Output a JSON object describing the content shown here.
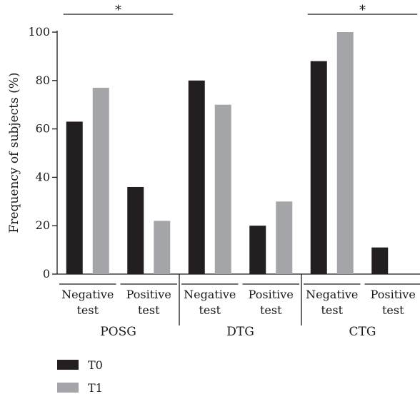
{
  "chart_data": {
    "type": "bar",
    "ylabel": "Frequency of subjects (%)",
    "ylim": [
      0,
      100
    ],
    "yticks": [
      0,
      20,
      40,
      60,
      80,
      100
    ],
    "groups": [
      {
        "name": "POSG",
        "categories": [
          "Negative\ntest",
          "Positive\ntest"
        ]
      },
      {
        "name": "DTG",
        "categories": [
          "Negative\ntest",
          "Positive\ntest"
        ]
      },
      {
        "name": "CTG",
        "categories": [
          "Negative\ntest",
          "Positive\ntest"
        ]
      }
    ],
    "categories": [
      "POSG Negative test",
      "POSG Positive test",
      "DTG Negative test",
      "DTG Positive test",
      "CTG Negative test",
      "CTG Positive test"
    ],
    "series": [
      {
        "name": "T0",
        "color": "#231f20",
        "values": [
          63,
          36,
          80,
          20,
          88,
          11
        ]
      },
      {
        "name": "T1",
        "color": "#a3a5a8",
        "values": [
          77,
          22,
          70,
          30,
          100,
          0
        ]
      }
    ],
    "significance": [
      {
        "group": "POSG",
        "label": "*"
      },
      {
        "group": "CTG",
        "label": "*"
      }
    ],
    "legend": {
      "position": "bottom-left"
    },
    "grid": false
  }
}
